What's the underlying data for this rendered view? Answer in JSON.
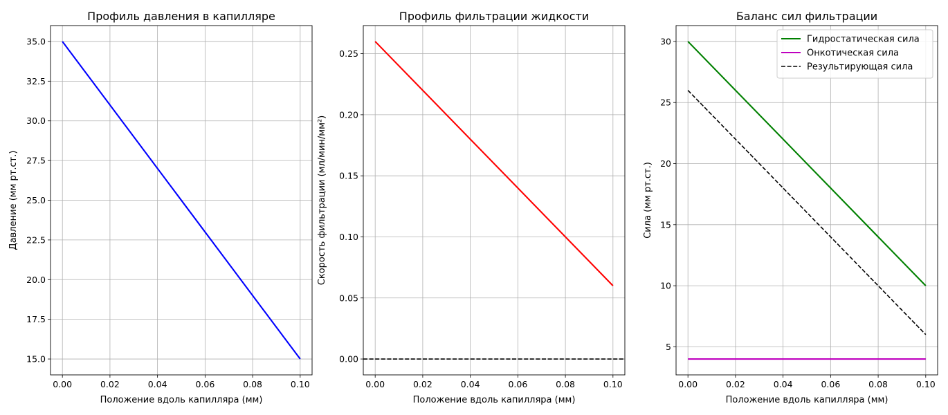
{
  "chart_data": [
    {
      "type": "line",
      "title": "Профиль давления в капилляре",
      "xlabel": "Положение вдоль капилляра (мм)",
      "ylabel": "Давление (мм рт.ст.)",
      "xlim": [
        -0.005,
        0.105
      ],
      "ylim": [
        14.0,
        36.0
      ],
      "xticks": [
        0.0,
        0.02,
        0.04,
        0.06,
        0.08,
        0.1
      ],
      "xtick_labels": [
        "0.00",
        "0.02",
        "0.04",
        "0.06",
        "0.08",
        "0.10"
      ],
      "yticks": [
        15.0,
        17.5,
        20.0,
        22.5,
        25.0,
        27.5,
        30.0,
        32.5,
        35.0
      ],
      "ytick_labels": [
        "15.0",
        "17.5",
        "20.0",
        "22.5",
        "25.0",
        "27.5",
        "30.0",
        "32.5",
        "35.0"
      ],
      "grid": true,
      "legend": null,
      "series": [
        {
          "name": "",
          "color": "#0000ff",
          "style": "solid",
          "x": [
            0.0,
            0.1
          ],
          "y": [
            35.0,
            15.0
          ]
        }
      ]
    },
    {
      "type": "line",
      "title": "Профиль фильтрации жидкости",
      "xlabel": "Положение вдоль капилляра (мм)",
      "ylabel": "Скорость фильтрации (мл/мин/мм²)",
      "xlim": [
        -0.005,
        0.105
      ],
      "ylim": [
        -0.013,
        0.273
      ],
      "xticks": [
        0.0,
        0.02,
        0.04,
        0.06,
        0.08,
        0.1
      ],
      "xtick_labels": [
        "0.00",
        "0.02",
        "0.04",
        "0.06",
        "0.08",
        "0.10"
      ],
      "yticks": [
        0.0,
        0.05,
        0.1,
        0.15,
        0.2,
        0.25
      ],
      "ytick_labels": [
        "0.00",
        "0.05",
        "0.10",
        "0.15",
        "0.20",
        "0.25"
      ],
      "grid": true,
      "legend": null,
      "series": [
        {
          "name": "",
          "color": "#ff0000",
          "style": "solid",
          "x": [
            0.0,
            0.1
          ],
          "y": [
            0.26,
            0.06
          ]
        },
        {
          "name": "",
          "color": "#000000",
          "style": "dashed",
          "x": [
            -0.005,
            0.105
          ],
          "y": [
            0.0,
            0.0
          ]
        }
      ]
    },
    {
      "type": "line",
      "title": "Баланс сил фильтрации",
      "xlabel": "Положение вдоль капилляра (мм)",
      "ylabel": "Сила (мм рт.ст.)",
      "xlim": [
        -0.005,
        0.105
      ],
      "ylim": [
        2.7,
        31.3
      ],
      "xticks": [
        0.0,
        0.02,
        0.04,
        0.06,
        0.08,
        0.1
      ],
      "xtick_labels": [
        "0.00",
        "0.02",
        "0.04",
        "0.06",
        "0.08",
        "0.10"
      ],
      "yticks": [
        5,
        10,
        15,
        20,
        25,
        30
      ],
      "ytick_labels": [
        "5",
        "10",
        "15",
        "20",
        "25",
        "30"
      ],
      "grid": true,
      "legend": "top-right",
      "series": [
        {
          "name": "Гидростатическая сила",
          "color": "#008000",
          "style": "solid",
          "x": [
            0.0,
            0.1
          ],
          "y": [
            30.0,
            10.0
          ]
        },
        {
          "name": "Онкотическая сила",
          "color": "#bf00bf",
          "style": "solid",
          "x": [
            0.0,
            0.1
          ],
          "y": [
            4.0,
            4.0
          ]
        },
        {
          "name": "Результирующая сила",
          "color": "#000000",
          "style": "dashed",
          "x": [
            0.0,
            0.1
          ],
          "y": [
            26.0,
            6.0
          ]
        }
      ]
    }
  ]
}
